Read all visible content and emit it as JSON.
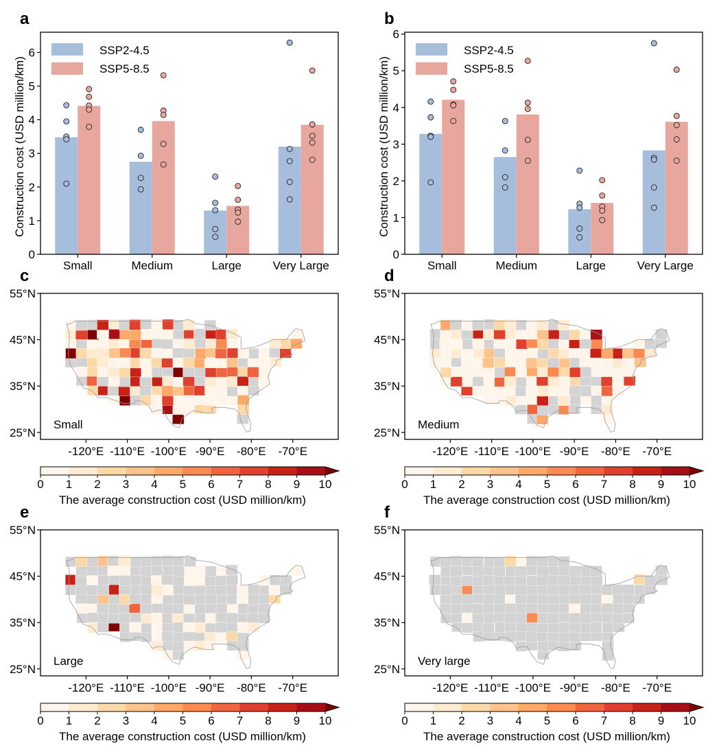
{
  "bar_panels": [
    {
      "letter": "a"
    },
    {
      "letter": "b"
    }
  ],
  "map_panels": [
    {
      "letter": "c",
      "label": "Small"
    },
    {
      "letter": "d",
      "label": "Medium"
    },
    {
      "letter": "e",
      "label": "Large"
    },
    {
      "letter": "f",
      "label": "Very large"
    }
  ],
  "map_axes": {
    "lon_ticks": [
      "-120°E",
      "-110°E",
      "-100°E",
      "-90°E",
      "-80°E",
      "-70°E"
    ],
    "lat_ticks": [
      "55°N",
      "45°N",
      "35°N",
      "25°N"
    ]
  },
  "colorbar": {
    "title": "The average construction cost (USD million/km)",
    "ticks": [
      "0",
      "1",
      "2",
      "3",
      "4",
      "5",
      "6",
      "7",
      "8",
      "9",
      "10"
    ],
    "colors": [
      "#fff5eb",
      "#feebd2",
      "#fdd9a8",
      "#fdc38a",
      "#fca96a",
      "#f98b52",
      "#ef6540",
      "#e0402e",
      "#c72218",
      "#a50f15"
    ],
    "extend_color": "#7f0000"
  },
  "colors": {
    "ssp245": "#a6bddb",
    "ssp585": "#e8a79e",
    "unavailable": "#d3d3d3"
  },
  "chart_data": [
    {
      "type": "bar",
      "panel": "a",
      "categories": [
        "Small",
        "Medium",
        "Large",
        "Very Large"
      ],
      "ylabel": "Construction cost (USD million/km)",
      "ylim": [
        0,
        6.6
      ],
      "yticks": [
        0,
        1,
        2,
        3,
        4,
        5,
        6
      ],
      "legend": "top-left",
      "series": [
        {
          "name": "SSP2-4.5",
          "values": [
            3.48,
            2.75,
            1.3,
            3.2
          ],
          "points": [
            [
              4.43,
              3.95,
              3.5,
              3.42,
              2.1
            ],
            [
              3.7,
              2.93,
              2.27,
              1.93
            ],
            [
              2.31,
              1.53,
              1.31,
              0.75,
              0.52
            ],
            [
              6.29,
              3.13,
              2.77,
              2.15,
              1.63
            ]
          ]
        },
        {
          "name": "SSP5-8.5",
          "values": [
            4.41,
            3.96,
            1.44,
            3.85
          ],
          "points": [
            [
              4.91,
              4.68,
              4.42,
              4.3,
              3.79
            ],
            [
              5.32,
              4.27,
              4.14,
              3.28,
              2.67
            ],
            [
              2.03,
              1.62,
              1.33,
              1.24,
              0.97
            ],
            [
              5.46,
              3.86,
              3.52,
              3.32,
              2.81
            ]
          ]
        }
      ]
    },
    {
      "type": "bar",
      "panel": "b",
      "categories": [
        "Small",
        "Medium",
        "Large",
        "Very Large"
      ],
      "ylabel": "Construction cost (USD million/km)",
      "ylim": [
        0,
        6.05
      ],
      "yticks": [
        0,
        1,
        2,
        3,
        4,
        5,
        6
      ],
      "legend": "top-left",
      "series": [
        {
          "name": "SSP2-4.5",
          "values": [
            3.28,
            2.65,
            1.23,
            2.83
          ],
          "points": [
            [
              4.16,
              3.73,
              3.23,
              3.2,
              1.96
            ],
            [
              3.63,
              2.83,
              2.1,
              1.82
            ],
            [
              2.28,
              1.38,
              1.27,
              0.7,
              0.46
            ],
            [
              5.75,
              2.63,
              2.58,
              1.82,
              1.27
            ]
          ]
        },
        {
          "name": "SSP5-8.5",
          "values": [
            4.21,
            3.81,
            1.4,
            3.61
          ],
          "points": [
            [
              4.71,
              4.48,
              4.08,
              4.06,
              3.63
            ],
            [
              5.27,
              4.13,
              3.96,
              3.12,
              2.55
            ],
            [
              2.02,
              1.6,
              1.3,
              1.19,
              0.93
            ],
            [
              5.03,
              3.77,
              3.52,
              3.13,
              2.55
            ]
          ]
        }
      ]
    }
  ]
}
